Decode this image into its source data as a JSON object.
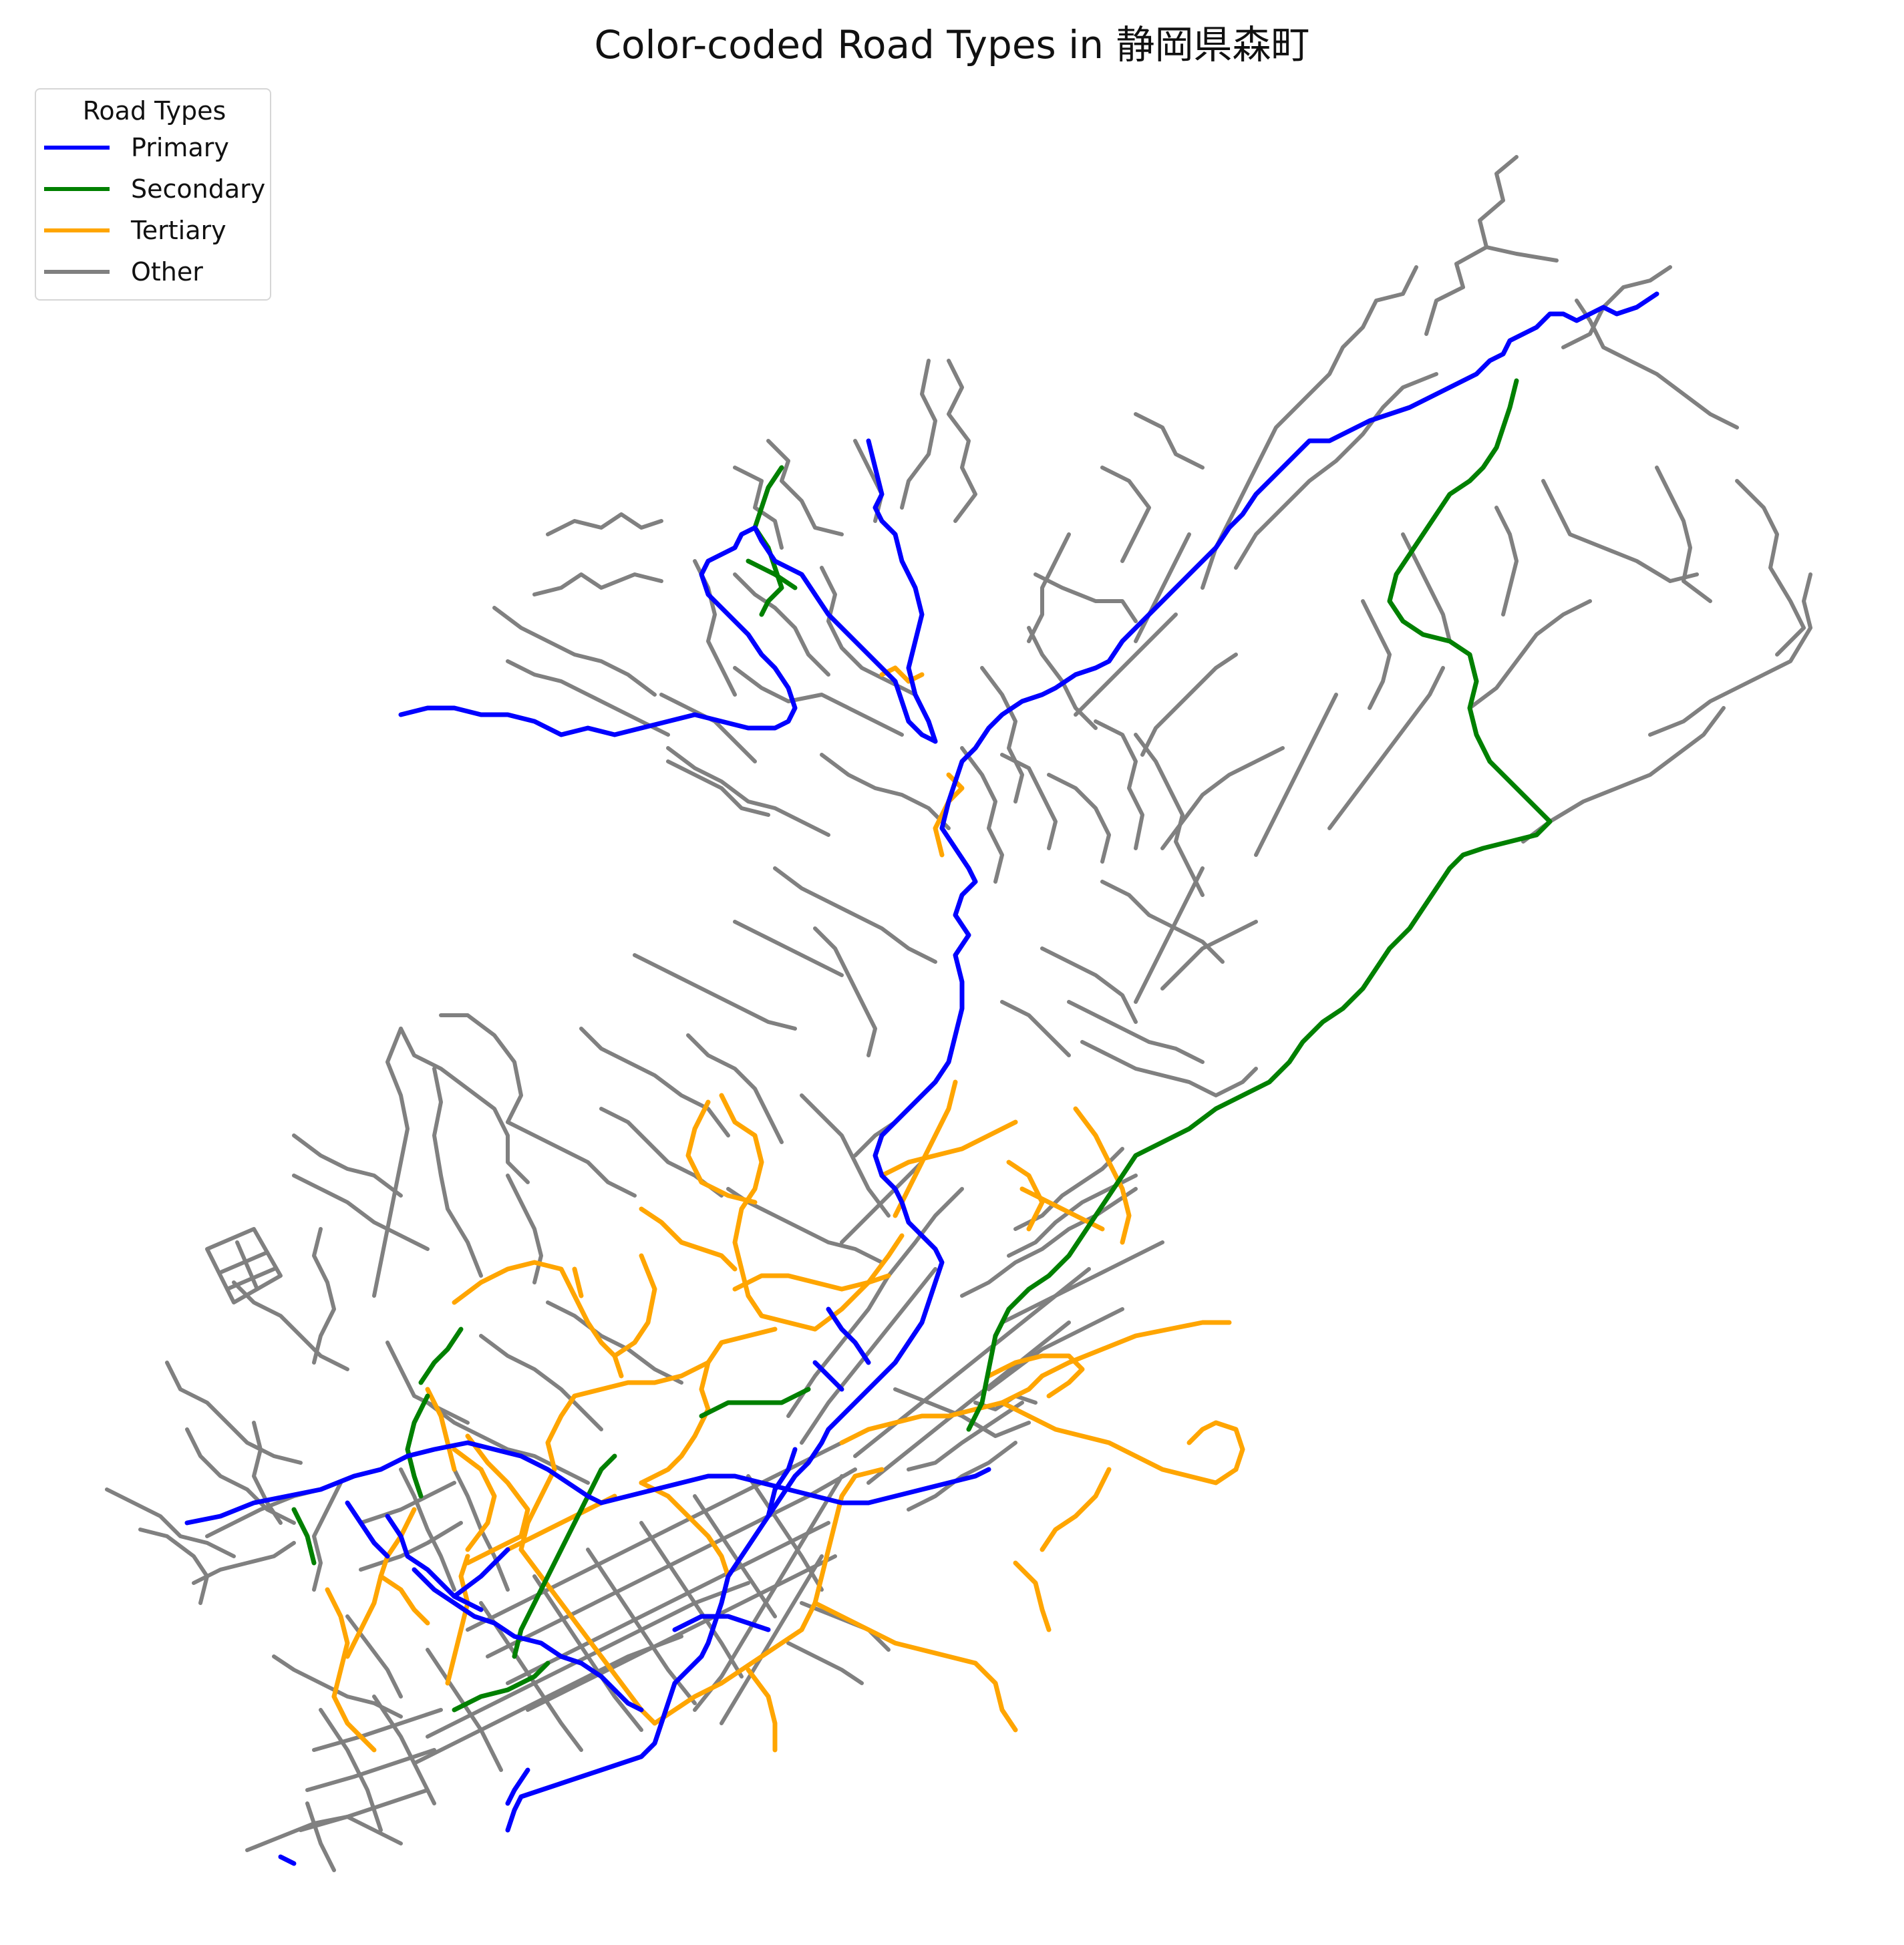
{
  "title": "Color-coded Road Types in 静岡県森町",
  "legend": {
    "title": "Road Types",
    "placement": "upper-left",
    "items": [
      {
        "label": "Primary",
        "color": "#0000ff"
      },
      {
        "label": "Secondary",
        "color": "#008000"
      },
      {
        "label": "Tertiary",
        "color": "#ffa500"
      },
      {
        "label": "Other",
        "color": "#808080"
      }
    ]
  }
}
